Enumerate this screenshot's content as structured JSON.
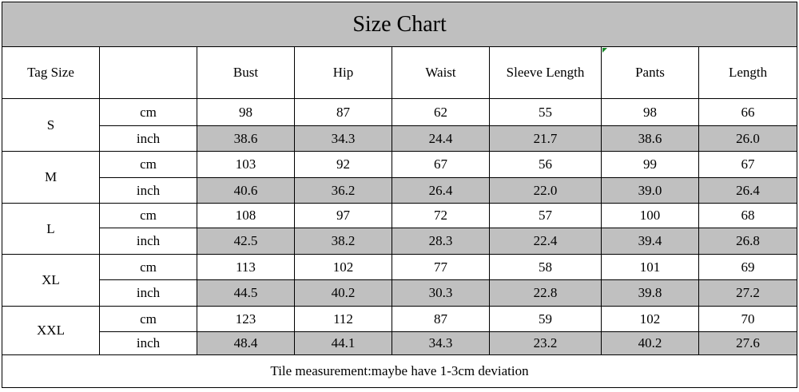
{
  "title": "Size Chart",
  "headers": {
    "tag_size": "Tag Size",
    "unit": "",
    "columns": [
      "Bust",
      "Hip",
      "Waist",
      "Sleeve Length",
      "Pants",
      "Length"
    ]
  },
  "rows": [
    {
      "size": "S",
      "cm_label": "cm",
      "inch_label": "inch",
      "cm": [
        "98",
        "87",
        "62",
        "55",
        "98",
        "66"
      ],
      "inch": [
        "38.6",
        "34.3",
        "24.4",
        "21.7",
        "38.6",
        "26.0"
      ]
    },
    {
      "size": "M",
      "cm_label": "cm",
      "inch_label": "inch",
      "cm": [
        "103",
        "92",
        "67",
        "56",
        "99",
        "67"
      ],
      "inch": [
        "40.6",
        "36.2",
        "26.4",
        "22.0",
        "39.0",
        "26.4"
      ]
    },
    {
      "size": "L",
      "cm_label": "cm",
      "inch_label": "inch",
      "cm": [
        "108",
        "97",
        "72",
        "57",
        "100",
        "68"
      ],
      "inch": [
        "42.5",
        "38.2",
        "28.3",
        "22.4",
        "39.4",
        "26.8"
      ]
    },
    {
      "size": "XL",
      "cm_label": "cm",
      "inch_label": "inch",
      "cm": [
        "113",
        "102",
        "77",
        "58",
        "101",
        "69"
      ],
      "inch": [
        "44.5",
        "40.2",
        "30.3",
        "22.8",
        "39.8",
        "27.2"
      ]
    },
    {
      "size": "XXL",
      "cm_label": "cm",
      "inch_label": "inch",
      "cm": [
        "123",
        "112",
        "87",
        "59",
        "102",
        "70"
      ],
      "inch": [
        "48.4",
        "44.1",
        "34.3",
        "23.2",
        "40.2",
        "27.6"
      ]
    }
  ],
  "footer": "Tile measurement:maybe have 1-3cm deviation",
  "colors": {
    "title_bg": "#bfbfbf",
    "inch_bg": "#c0c0c0",
    "border": "#000000"
  }
}
